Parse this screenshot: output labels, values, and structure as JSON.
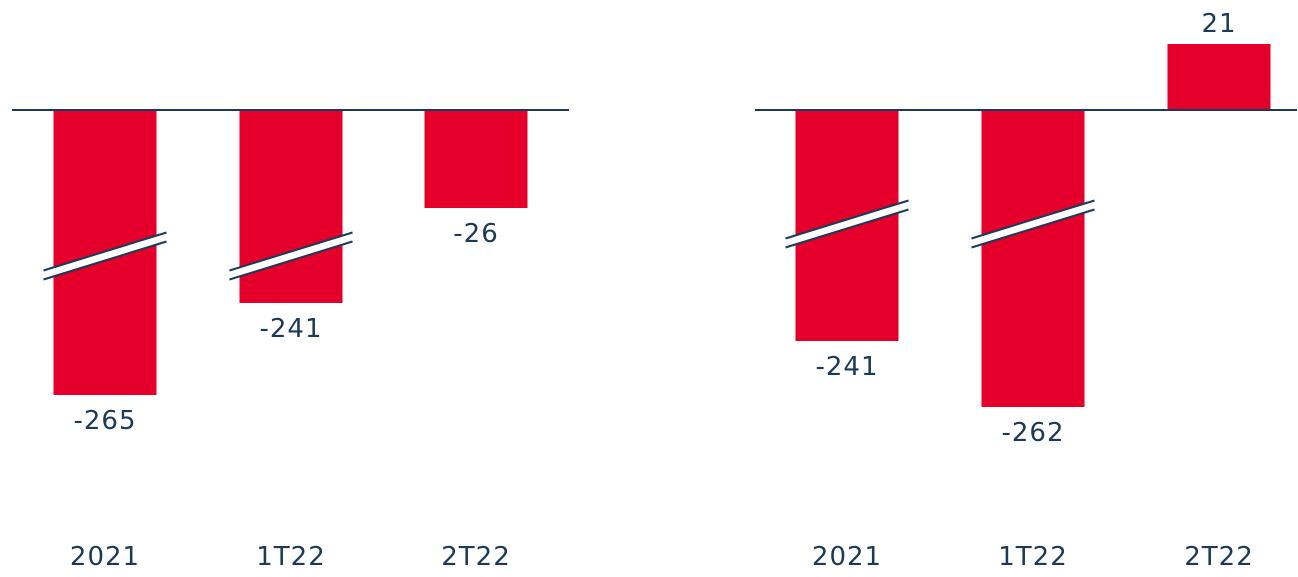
{
  "colors": {
    "bar": "#e4002b",
    "axis": "#1b3a57",
    "text": "#1b3a57",
    "break_fill": "#ffffff"
  },
  "chart_data": [
    {
      "type": "bar",
      "categories": [
        "2021",
        "1T22",
        "2T22"
      ],
      "values": [
        -265,
        -241,
        -26
      ],
      "data_labels": [
        "-265",
        "-241",
        "-26"
      ],
      "axis_breaks": [
        true,
        true,
        false
      ],
      "title": "",
      "xlabel": "",
      "ylabel": "",
      "grid": false,
      "legend": "none"
    },
    {
      "type": "bar",
      "categories": [
        "2021",
        "1T22",
        "2T22"
      ],
      "values": [
        -241,
        -262,
        21
      ],
      "data_labels": [
        "-241",
        "-262",
        "21"
      ],
      "axis_breaks": [
        true,
        true,
        false
      ],
      "title": "",
      "xlabel": "",
      "ylabel": "",
      "grid": false,
      "legend": "none"
    }
  ]
}
